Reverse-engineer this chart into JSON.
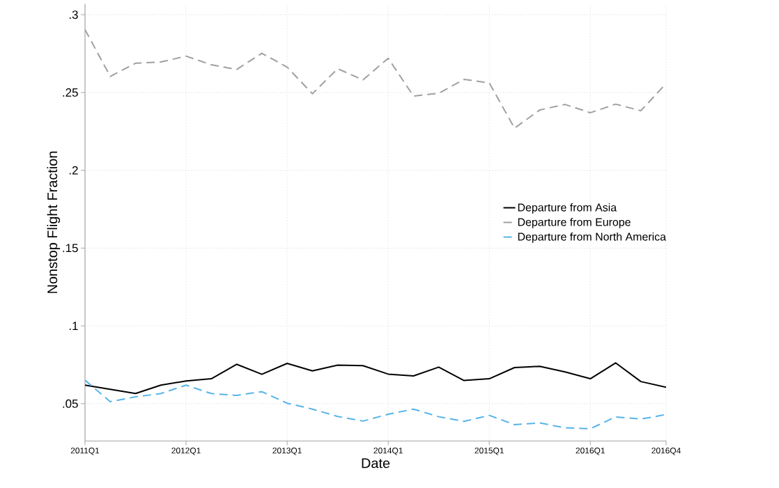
{
  "chart_data": {
    "type": "line",
    "xlabel": "Date",
    "ylabel": "Nonstop Flight Fraction",
    "categories": [
      "2011Q1",
      null,
      null,
      null,
      "2012Q1",
      null,
      null,
      null,
      "2013Q1",
      null,
      null,
      null,
      "2014Q1",
      null,
      null,
      null,
      "2015Q1",
      null,
      null,
      null,
      "2016Q1",
      null,
      null,
      "2016Q4"
    ],
    "ylim": [
      0.026,
      0.307
    ],
    "yticks": [
      {
        "value": 0.05,
        "label": ".05"
      },
      {
        "value": 0.1,
        "label": ".1"
      },
      {
        "value": 0.15,
        "label": ".15"
      },
      {
        "value": 0.2,
        "label": ".2"
      },
      {
        "value": 0.25,
        "label": ".25"
      },
      {
        "value": 0.3,
        "label": ".3"
      }
    ],
    "grid": true,
    "legend": "right",
    "marker": "none",
    "series": [
      {
        "name": "Departure from Asia",
        "color": "#000000",
        "line_style": "solid",
        "values": [
          0.0619,
          0.0592,
          0.0565,
          0.0619,
          0.0646,
          0.066,
          0.0753,
          0.0689,
          0.0759,
          0.0711,
          0.0748,
          0.0744,
          0.069,
          0.0678,
          0.0735,
          0.0649,
          0.066,
          0.0732,
          0.074,
          0.0704,
          0.066,
          0.0762,
          0.0642,
          0.0605
        ]
      },
      {
        "name": "Departure from Europe",
        "color": "#a0a0a0",
        "line_style": "dashed",
        "values": [
          0.2904,
          0.2603,
          0.2688,
          0.2696,
          0.2734,
          0.2678,
          0.2648,
          0.2752,
          0.2663,
          0.2492,
          0.2653,
          0.2581,
          0.272,
          0.2477,
          0.2495,
          0.2584,
          0.2562,
          0.2271,
          0.2388,
          0.2423,
          0.237,
          0.2425,
          0.2383,
          0.2558
        ]
      },
      {
        "name": "Departure from North America",
        "color": "#56b4e9",
        "line_style": "dashed",
        "values": [
          0.0651,
          0.0513,
          0.0544,
          0.0565,
          0.0619,
          0.0565,
          0.0553,
          0.0577,
          0.0503,
          0.0465,
          0.0418,
          0.0388,
          0.0432,
          0.0465,
          0.0416,
          0.0386,
          0.0425,
          0.0365,
          0.0376,
          0.0345,
          0.0339,
          0.0415,
          0.0401,
          0.043
        ]
      }
    ]
  }
}
